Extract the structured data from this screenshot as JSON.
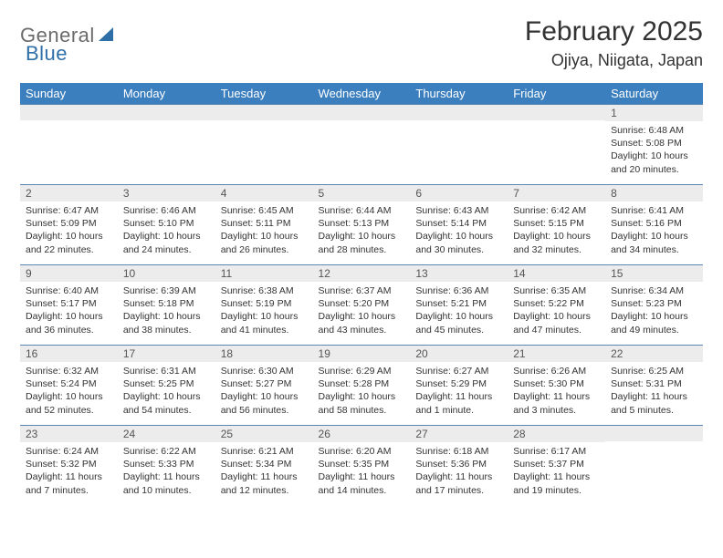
{
  "logo": {
    "text1": "General",
    "text2": "Blue"
  },
  "title": "February 2025",
  "location": "Ojiya, Niigata, Japan",
  "colors": {
    "header_bg": "#3b7fbf",
    "header_text": "#ffffff",
    "daynum_bg": "#ececec",
    "row_border": "#5a88b3",
    "logo_gray": "#6b6b6b",
    "logo_blue": "#2f6fa8",
    "page_bg": "#ffffff"
  },
  "weekdays": [
    "Sunday",
    "Monday",
    "Tuesday",
    "Wednesday",
    "Thursday",
    "Friday",
    "Saturday"
  ],
  "weeks": [
    [
      {
        "empty": true
      },
      {
        "empty": true
      },
      {
        "empty": true
      },
      {
        "empty": true
      },
      {
        "empty": true
      },
      {
        "empty": true
      },
      {
        "day": "1",
        "sunrise": "Sunrise: 6:48 AM",
        "sunset": "Sunset: 5:08 PM",
        "daylight": "Daylight: 10 hours and 20 minutes."
      }
    ],
    [
      {
        "day": "2",
        "sunrise": "Sunrise: 6:47 AM",
        "sunset": "Sunset: 5:09 PM",
        "daylight": "Daylight: 10 hours and 22 minutes."
      },
      {
        "day": "3",
        "sunrise": "Sunrise: 6:46 AM",
        "sunset": "Sunset: 5:10 PM",
        "daylight": "Daylight: 10 hours and 24 minutes."
      },
      {
        "day": "4",
        "sunrise": "Sunrise: 6:45 AM",
        "sunset": "Sunset: 5:11 PM",
        "daylight": "Daylight: 10 hours and 26 minutes."
      },
      {
        "day": "5",
        "sunrise": "Sunrise: 6:44 AM",
        "sunset": "Sunset: 5:13 PM",
        "daylight": "Daylight: 10 hours and 28 minutes."
      },
      {
        "day": "6",
        "sunrise": "Sunrise: 6:43 AM",
        "sunset": "Sunset: 5:14 PM",
        "daylight": "Daylight: 10 hours and 30 minutes."
      },
      {
        "day": "7",
        "sunrise": "Sunrise: 6:42 AM",
        "sunset": "Sunset: 5:15 PM",
        "daylight": "Daylight: 10 hours and 32 minutes."
      },
      {
        "day": "8",
        "sunrise": "Sunrise: 6:41 AM",
        "sunset": "Sunset: 5:16 PM",
        "daylight": "Daylight: 10 hours and 34 minutes."
      }
    ],
    [
      {
        "day": "9",
        "sunrise": "Sunrise: 6:40 AM",
        "sunset": "Sunset: 5:17 PM",
        "daylight": "Daylight: 10 hours and 36 minutes."
      },
      {
        "day": "10",
        "sunrise": "Sunrise: 6:39 AM",
        "sunset": "Sunset: 5:18 PM",
        "daylight": "Daylight: 10 hours and 38 minutes."
      },
      {
        "day": "11",
        "sunrise": "Sunrise: 6:38 AM",
        "sunset": "Sunset: 5:19 PM",
        "daylight": "Daylight: 10 hours and 41 minutes."
      },
      {
        "day": "12",
        "sunrise": "Sunrise: 6:37 AM",
        "sunset": "Sunset: 5:20 PM",
        "daylight": "Daylight: 10 hours and 43 minutes."
      },
      {
        "day": "13",
        "sunrise": "Sunrise: 6:36 AM",
        "sunset": "Sunset: 5:21 PM",
        "daylight": "Daylight: 10 hours and 45 minutes."
      },
      {
        "day": "14",
        "sunrise": "Sunrise: 6:35 AM",
        "sunset": "Sunset: 5:22 PM",
        "daylight": "Daylight: 10 hours and 47 minutes."
      },
      {
        "day": "15",
        "sunrise": "Sunrise: 6:34 AM",
        "sunset": "Sunset: 5:23 PM",
        "daylight": "Daylight: 10 hours and 49 minutes."
      }
    ],
    [
      {
        "day": "16",
        "sunrise": "Sunrise: 6:32 AM",
        "sunset": "Sunset: 5:24 PM",
        "daylight": "Daylight: 10 hours and 52 minutes."
      },
      {
        "day": "17",
        "sunrise": "Sunrise: 6:31 AM",
        "sunset": "Sunset: 5:25 PM",
        "daylight": "Daylight: 10 hours and 54 minutes."
      },
      {
        "day": "18",
        "sunrise": "Sunrise: 6:30 AM",
        "sunset": "Sunset: 5:27 PM",
        "daylight": "Daylight: 10 hours and 56 minutes."
      },
      {
        "day": "19",
        "sunrise": "Sunrise: 6:29 AM",
        "sunset": "Sunset: 5:28 PM",
        "daylight": "Daylight: 10 hours and 58 minutes."
      },
      {
        "day": "20",
        "sunrise": "Sunrise: 6:27 AM",
        "sunset": "Sunset: 5:29 PM",
        "daylight": "Daylight: 11 hours and 1 minute."
      },
      {
        "day": "21",
        "sunrise": "Sunrise: 6:26 AM",
        "sunset": "Sunset: 5:30 PM",
        "daylight": "Daylight: 11 hours and 3 minutes."
      },
      {
        "day": "22",
        "sunrise": "Sunrise: 6:25 AM",
        "sunset": "Sunset: 5:31 PM",
        "daylight": "Daylight: 11 hours and 5 minutes."
      }
    ],
    [
      {
        "day": "23",
        "sunrise": "Sunrise: 6:24 AM",
        "sunset": "Sunset: 5:32 PM",
        "daylight": "Daylight: 11 hours and 7 minutes."
      },
      {
        "day": "24",
        "sunrise": "Sunrise: 6:22 AM",
        "sunset": "Sunset: 5:33 PM",
        "daylight": "Daylight: 11 hours and 10 minutes."
      },
      {
        "day": "25",
        "sunrise": "Sunrise: 6:21 AM",
        "sunset": "Sunset: 5:34 PM",
        "daylight": "Daylight: 11 hours and 12 minutes."
      },
      {
        "day": "26",
        "sunrise": "Sunrise: 6:20 AM",
        "sunset": "Sunset: 5:35 PM",
        "daylight": "Daylight: 11 hours and 14 minutes."
      },
      {
        "day": "27",
        "sunrise": "Sunrise: 6:18 AM",
        "sunset": "Sunset: 5:36 PM",
        "daylight": "Daylight: 11 hours and 17 minutes."
      },
      {
        "day": "28",
        "sunrise": "Sunrise: 6:17 AM",
        "sunset": "Sunset: 5:37 PM",
        "daylight": "Daylight: 11 hours and 19 minutes."
      },
      {
        "empty": true
      }
    ]
  ]
}
